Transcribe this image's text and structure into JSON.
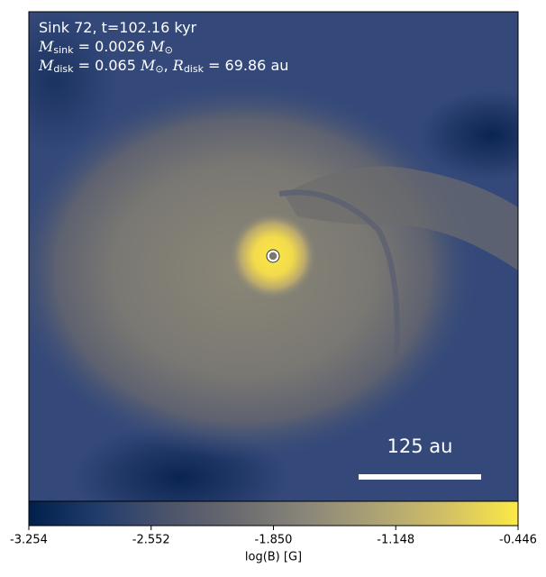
{
  "info_lines": [
    [
      {
        "text": "Sink 72, t=102.16 kyr"
      }
    ],
    [
      {
        "text": "M",
        "italic": true
      },
      {
        "text": "sink",
        "sub": true
      },
      {
        "text": " = 0.0026 "
      },
      {
        "text": "M",
        "italic": true
      },
      {
        "text": "⊙",
        "sub": true
      }
    ],
    [
      {
        "text": "M",
        "italic": true
      },
      {
        "text": "disk",
        "sub": true
      },
      {
        "text": " = 0.065 "
      },
      {
        "text": "M",
        "italic": true
      },
      {
        "text": "⊙",
        "sub": true
      },
      {
        "text": ", "
      },
      {
        "text": "R",
        "italic": true
      },
      {
        "text": "disk",
        "sub": true
      },
      {
        "text": " = 69.86 au"
      }
    ]
  ],
  "scale_bar": "125 au",
  "colorbar": {
    "label": "log(B) [G]",
    "lim": [
      -3.254,
      -0.446
    ],
    "ticks": [
      -3.254,
      -2.552,
      -1.85,
      -1.148,
      -0.446
    ],
    "tick_labels": [
      "-3.254",
      "-2.552",
      "-1.850",
      "-1.148",
      "-0.446"
    ],
    "colormap": [
      "#00204c",
      "#213d6b",
      "#4c546c",
      "#6b6b70",
      "#8b8779",
      "#aea374",
      "#d3c164",
      "#fde945"
    ]
  }
}
